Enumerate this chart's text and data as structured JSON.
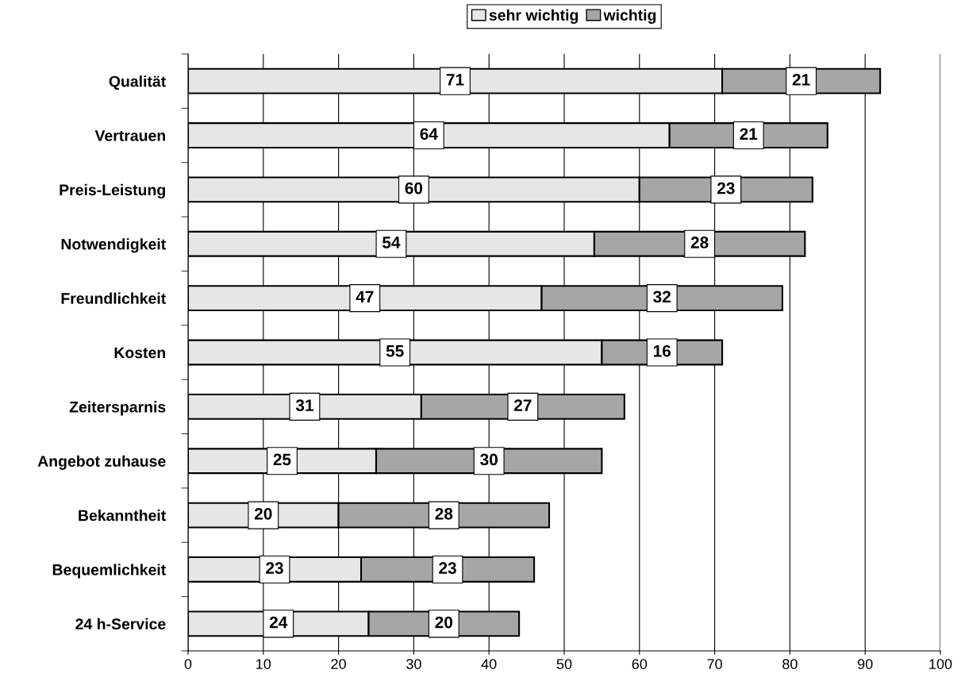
{
  "chart_data": {
    "type": "bar",
    "orientation": "horizontal",
    "stacked": true,
    "categories": [
      "Qualität",
      "Vertrauen",
      "Preis-Leistung",
      "Notwendigkeit",
      "Freundlichkeit",
      "Kosten",
      "Zeitersparnis",
      "Angebot zuhause",
      "Bekanntheit",
      "Bequemlichkeit",
      "24 h-Service"
    ],
    "series": [
      {
        "name": "sehr wichtig",
        "color": "#e6e6e6",
        "values": [
          71,
          64,
          60,
          54,
          47,
          55,
          31,
          25,
          20,
          23,
          24
        ]
      },
      {
        "name": "wichtig",
        "color": "#a6a6a6",
        "values": [
          21,
          21,
          23,
          28,
          32,
          16,
          27,
          30,
          28,
          23,
          20
        ]
      }
    ],
    "xlim": [
      0,
      100
    ],
    "xticks": [
      0,
      10,
      20,
      30,
      40,
      50,
      60,
      70,
      80,
      90,
      100
    ],
    "grid": "x",
    "legend": "top",
    "data_labels": true
  }
}
